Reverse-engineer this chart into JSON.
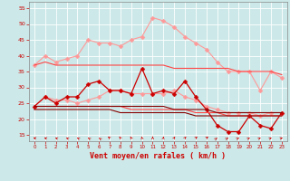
{
  "bg_color": "#cce8e8",
  "grid_color": "#ffffff",
  "xlabel": "Vent moyen/en rafales ( km/h )",
  "xlabel_color": "#cc0000",
  "xlabel_fontsize": 6,
  "tick_color": "#cc0000",
  "ylim": [
    13,
    57
  ],
  "yticks": [
    15,
    20,
    25,
    30,
    35,
    40,
    45,
    50,
    55
  ],
  "xlim": [
    -0.5,
    23.5
  ],
  "xticks": [
    0,
    1,
    2,
    3,
    4,
    5,
    6,
    7,
    8,
    9,
    10,
    11,
    12,
    13,
    14,
    15,
    16,
    17,
    18,
    19,
    20,
    21,
    22,
    23
  ],
  "series": [
    {
      "name": "light_pink_upper",
      "color": "#ff9999",
      "lw": 0.8,
      "marker": "D",
      "ms": 2.5,
      "y": [
        37,
        40,
        38,
        39,
        40,
        45,
        44,
        44,
        43,
        45,
        46,
        52,
        51,
        49,
        46,
        44,
        42,
        38,
        35,
        35,
        35,
        29,
        35,
        33
      ]
    },
    {
      "name": "light_pink_lower",
      "color": "#ff9999",
      "lw": 0.8,
      "marker": "D",
      "ms": 2.5,
      "y": [
        24,
        27,
        26,
        26,
        25,
        26,
        27,
        29,
        29,
        28,
        28,
        28,
        28,
        29,
        27,
        26,
        24,
        23,
        22,
        22,
        22,
        21,
        22,
        22
      ]
    },
    {
      "name": "dark_red_jagged",
      "color": "#cc0000",
      "lw": 0.9,
      "marker": "D",
      "ms": 2.5,
      "y": [
        24,
        27,
        25,
        27,
        27,
        31,
        32,
        29,
        29,
        28,
        36,
        28,
        29,
        28,
        32,
        27,
        23,
        18,
        16,
        16,
        21,
        18,
        17,
        22
      ]
    },
    {
      "name": "medium_red_upper",
      "color": "#ff4444",
      "lw": 0.8,
      "marker": null,
      "ms": 0,
      "y": [
        37,
        38,
        37,
        37,
        37,
        37,
        37,
        37,
        37,
        37,
        37,
        37,
        37,
        36,
        36,
        36,
        36,
        36,
        36,
        35,
        35,
        35,
        35,
        34
      ]
    },
    {
      "name": "medium_red_lower",
      "color": "#ff4444",
      "lw": 0.8,
      "marker": null,
      "ms": 0,
      "y": [
        24,
        24,
        24,
        24,
        24,
        24,
        24,
        24,
        24,
        23,
        23,
        23,
        23,
        23,
        23,
        22,
        22,
        22,
        21,
        21,
        21,
        21,
        21,
        21
      ]
    },
    {
      "name": "dark_red_upper_straight",
      "color": "#880000",
      "lw": 0.8,
      "marker": null,
      "ms": 0,
      "y": [
        24,
        24,
        24,
        24,
        24,
        24,
        24,
        24,
        24,
        24,
        24,
        24,
        24,
        23,
        23,
        23,
        23,
        22,
        22,
        22,
        22,
        22,
        22,
        22
      ]
    },
    {
      "name": "dark_red_lower_straight",
      "color": "#880000",
      "lw": 0.8,
      "marker": null,
      "ms": 0,
      "y": [
        23,
        23,
        23,
        23,
        23,
        23,
        23,
        23,
        22,
        22,
        22,
        22,
        22,
        22,
        22,
        21,
        21,
        21,
        21,
        21,
        21,
        21,
        21,
        21
      ]
    }
  ],
  "arrow_angles_deg": [
    -45,
    -42,
    -38,
    -35,
    -32,
    -28,
    -25,
    -20,
    -15,
    -10,
    -5,
    0,
    5,
    10,
    15,
    20,
    22,
    25,
    28,
    30,
    32,
    35,
    38,
    42
  ]
}
